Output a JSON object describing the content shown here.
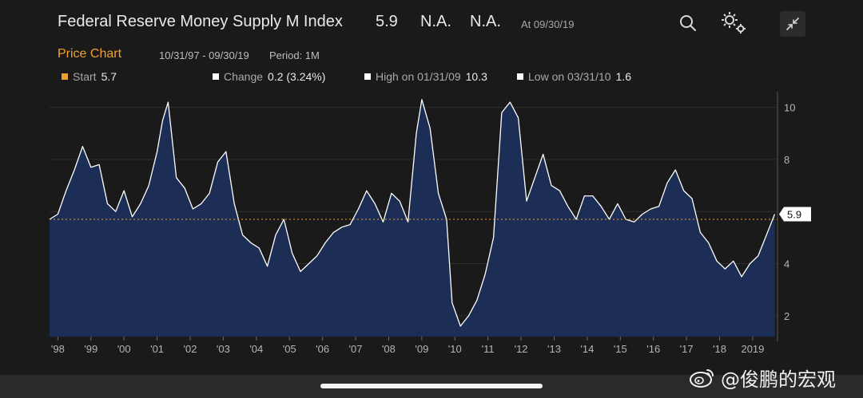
{
  "header": {
    "title": "Federal Reserve Money Supply M Index",
    "value": "5.9",
    "na1": "N.A.",
    "na2": "N.A.",
    "as_of": "At 09/30/19"
  },
  "subheader": {
    "chart_label": "Price Chart",
    "date_range": "10/31/97 - 09/30/19",
    "period": "Period: 1M"
  },
  "stats": {
    "start_label": "Start",
    "start_value": "5.7",
    "change_label": "Change",
    "change_value": "0.2 (3.24%)",
    "high_label": "High on 01/31/09",
    "high_value": "10.3",
    "low_label": "Low on 03/31/10",
    "low_value": "1.6"
  },
  "watermark": {
    "text": "@俊鹏的宏观"
  },
  "colors": {
    "accent": "#f0a032",
    "line": "#ffffff",
    "area": "#1c2e55",
    "reference_line": "#f0a032",
    "text_muted": "#a9a9a9"
  },
  "icons": [
    "search-icon",
    "settings-icon",
    "collapse-icon",
    "weibo-logo"
  ],
  "chart_data": {
    "type": "area",
    "x_ticks": [
      "'98",
      "'99",
      "'00",
      "'01",
      "'02",
      "'03",
      "'04",
      "'05",
      "'06",
      "'07",
      "'08",
      "'09",
      "'10",
      "'11",
      "'12",
      "'13",
      "'14",
      "'15",
      "'16",
      "'17",
      "'18",
      "2019"
    ],
    "y_ticks": [
      2,
      4,
      6,
      8,
      10
    ],
    "ylim": [
      1.2,
      10.6
    ],
    "xlim": [
      "1997-10",
      "2019-10"
    ],
    "last_value": "5.9",
    "reference_value": 5.7,
    "grid": true,
    "series": [
      {
        "x": [
          "1997-10",
          "1998-01",
          "1998-04",
          "1998-07",
          "1998-10",
          "1999-01",
          "1999-04",
          "1999-07",
          "1999-10",
          "2000-01",
          "2000-04",
          "2000-07",
          "2000-10",
          "2001-01",
          "2001-03",
          "2001-05",
          "2001-08",
          "2001-11",
          "2002-02",
          "2002-05",
          "2002-08",
          "2002-11",
          "2003-02",
          "2003-05",
          "2003-08",
          "2003-11",
          "2004-02",
          "2004-05",
          "2004-08",
          "2004-11",
          "2005-02",
          "2005-05",
          "2005-08",
          "2005-11",
          "2006-02",
          "2006-05",
          "2006-08",
          "2006-11",
          "2007-02",
          "2007-05",
          "2007-08",
          "2007-11",
          "2008-02",
          "2008-05",
          "2008-08",
          "2008-11",
          "2009-01",
          "2009-04",
          "2009-07",
          "2009-10",
          "2009-12",
          "2010-03",
          "2010-06",
          "2010-09",
          "2010-12",
          "2011-03",
          "2011-06",
          "2011-09",
          "2011-12",
          "2012-03",
          "2012-06",
          "2012-09",
          "2012-12",
          "2013-03",
          "2013-06",
          "2013-09",
          "2013-12",
          "2014-03",
          "2014-06",
          "2014-09",
          "2014-12",
          "2015-03",
          "2015-06",
          "2015-09",
          "2015-12",
          "2016-03",
          "2016-06",
          "2016-09",
          "2016-12",
          "2017-03",
          "2017-06",
          "2017-09",
          "2017-12",
          "2018-03",
          "2018-06",
          "2018-09",
          "2018-12",
          "2019-03",
          "2019-06",
          "2019-09"
        ],
        "y": [
          5.7,
          5.9,
          6.8,
          7.6,
          8.5,
          7.7,
          7.8,
          6.3,
          6.0,
          6.8,
          5.8,
          6.3,
          7.0,
          8.3,
          9.5,
          10.2,
          7.3,
          6.9,
          6.1,
          6.3,
          6.7,
          7.9,
          8.3,
          6.3,
          5.1,
          4.8,
          4.6,
          3.9,
          5.1,
          5.7,
          4.4,
          3.7,
          4.0,
          4.3,
          4.8,
          5.2,
          5.4,
          5.5,
          6.1,
          6.8,
          6.3,
          5.6,
          6.7,
          6.4,
          5.6,
          9.0,
          10.3,
          9.2,
          6.7,
          5.7,
          2.5,
          1.6,
          2.0,
          2.6,
          3.6,
          5.0,
          9.8,
          10.2,
          9.6,
          6.4,
          7.3,
          8.2,
          7.0,
          6.8,
          6.2,
          5.7,
          6.6,
          6.6,
          6.2,
          5.7,
          6.3,
          5.7,
          5.6,
          5.9,
          6.1,
          6.2,
          7.1,
          7.6,
          6.8,
          6.5,
          5.2,
          4.8,
          4.1,
          3.8,
          4.1,
          3.5,
          4.0,
          4.3,
          5.1,
          5.9
        ]
      }
    ]
  }
}
